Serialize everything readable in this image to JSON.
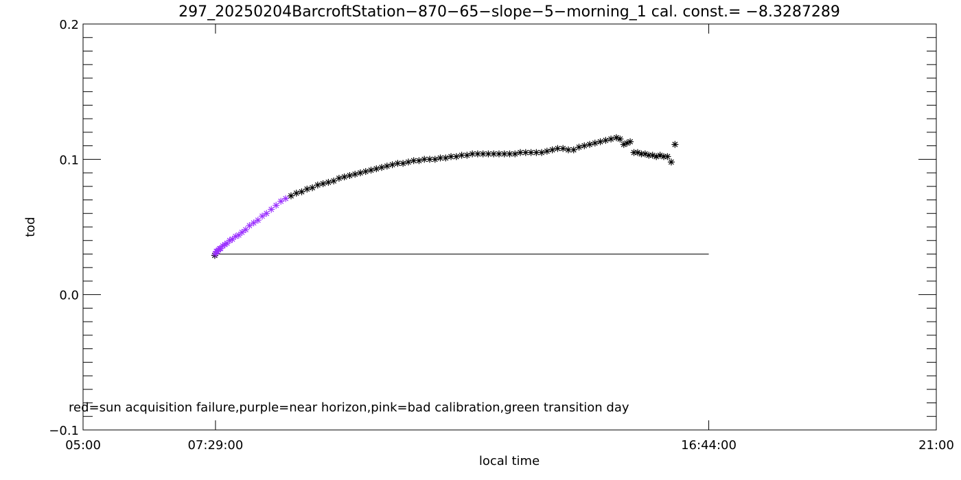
{
  "chart_data": {
    "type": "scatter",
    "title": "297_20250204BarcroftStation−870−65−slope−5−morning_1 cal. const.= −8.3287289",
    "xlabel": "local time",
    "ylabel": "tod",
    "x_unit": "hours (local time)",
    "xlim": [
      5.0,
      21.0
    ],
    "ylim": [
      -0.1,
      0.2
    ],
    "x_tick_labels": [
      {
        "x": 5.0,
        "label": "05:00"
      },
      {
        "x": 7.4833,
        "label": "07:29:00"
      },
      {
        "x": 16.7333,
        "label": "16:44:00"
      },
      {
        "x": 21.0,
        "label": "21:00"
      }
    ],
    "y_tick_labels": [
      {
        "y": -0.1,
        "label": "−0.1"
      },
      {
        "y": 0.0,
        "label": "0.0"
      },
      {
        "y": 0.1,
        "label": "0.1"
      },
      {
        "y": 0.2,
        "label": "0.2"
      }
    ],
    "y_minor_step": 0.01,
    "x_major_ticks": [
      5.0,
      7.4833,
      16.7333,
      21.0
    ],
    "reference_line": {
      "x": [
        7.4833,
        16.7333
      ],
      "y": [
        0.03,
        0.03
      ]
    },
    "marker": "asterisk",
    "series": [
      {
        "color": "#9b30ff",
        "x": [
          7.48,
          7.5,
          7.52,
          7.54,
          7.56,
          7.58,
          7.62,
          7.66,
          7.7,
          7.75,
          7.8,
          7.86,
          7.92,
          7.98,
          8.05,
          8.12,
          8.2,
          8.28,
          8.36,
          8.44,
          8.53,
          8.62,
          8.71,
          8.8
        ],
        "y": [
          0.03,
          0.032,
          0.032,
          0.033,
          0.034,
          0.034,
          0.036,
          0.037,
          0.038,
          0.04,
          0.041,
          0.043,
          0.044,
          0.046,
          0.048,
          0.051,
          0.053,
          0.055,
          0.058,
          0.06,
          0.063,
          0.066,
          0.069,
          0.071
        ]
      },
      {
        "color": "#000000",
        "x": [
          7.47,
          8.9,
          9.0,
          9.1,
          9.2,
          9.3,
          9.4,
          9.5,
          9.6,
          9.7,
          9.8,
          9.9,
          10.0,
          10.1,
          10.2,
          10.3,
          10.4,
          10.5,
          10.6,
          10.7,
          10.8,
          10.9,
          11.0,
          11.1,
          11.2,
          11.3,
          11.4,
          11.5,
          11.6,
          11.7,
          11.8,
          11.9,
          12.0,
          12.1,
          12.2,
          12.3,
          12.4,
          12.5,
          12.6,
          12.7,
          12.8,
          12.9,
          13.0,
          13.1,
          13.2,
          13.3,
          13.4,
          13.5,
          13.6,
          13.7,
          13.8,
          13.9,
          14.0,
          14.1,
          14.2,
          14.3,
          14.4,
          14.5,
          14.6,
          14.7,
          14.8,
          14.9,
          15.0,
          15.07,
          15.14,
          15.2,
          15.26,
          15.33,
          15.4,
          15.47,
          15.54,
          15.61,
          15.68,
          15.75,
          15.82,
          15.89,
          15.96,
          16.03,
          16.1
        ],
        "y": [
          0.029,
          0.073,
          0.075,
          0.076,
          0.078,
          0.079,
          0.081,
          0.082,
          0.083,
          0.084,
          0.086,
          0.087,
          0.088,
          0.089,
          0.09,
          0.091,
          0.092,
          0.093,
          0.094,
          0.095,
          0.096,
          0.097,
          0.097,
          0.098,
          0.099,
          0.099,
          0.1,
          0.1,
          0.1,
          0.101,
          0.101,
          0.102,
          0.102,
          0.103,
          0.103,
          0.104,
          0.104,
          0.104,
          0.104,
          0.104,
          0.104,
          0.104,
          0.104,
          0.104,
          0.105,
          0.105,
          0.105,
          0.105,
          0.105,
          0.106,
          0.107,
          0.108,
          0.108,
          0.107,
          0.107,
          0.109,
          0.11,
          0.111,
          0.112,
          0.113,
          0.114,
          0.115,
          0.116,
          0.115,
          0.111,
          0.112,
          0.113,
          0.105,
          0.105,
          0.104,
          0.104,
          0.103,
          0.103,
          0.102,
          0.103,
          0.102,
          0.102,
          0.098,
          0.111
        ]
      }
    ],
    "legend_note": "red=sun acquisition failure,purple=near horizon,pink=bad calibration,green transition day",
    "grid": false
  }
}
